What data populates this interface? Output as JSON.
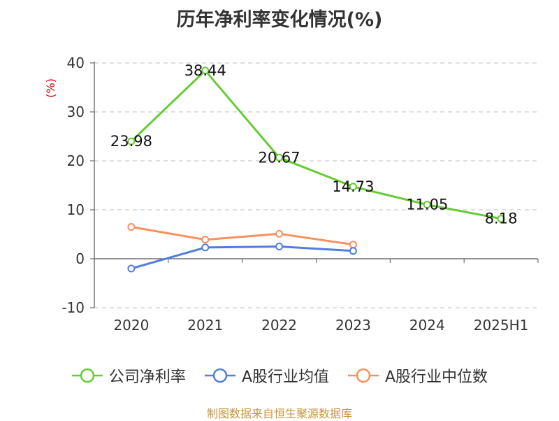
{
  "chart_data": {
    "type": "line",
    "title": "历年净利率变化情况(%)",
    "ylabel": "(%)",
    "categories": [
      "2020",
      "2021",
      "2022",
      "2023",
      "2024",
      "2025H1"
    ],
    "ylim": [
      -10,
      40
    ],
    "yticks": [
      40,
      30,
      20,
      10,
      0,
      -10
    ],
    "grid": true,
    "legend_position": "bottom",
    "series": [
      {
        "name": "公司净利率",
        "color": "#66cc33",
        "show_labels": true,
        "values": [
          23.98,
          38.44,
          20.67,
          14.73,
          11.05,
          8.18
        ],
        "labels": [
          "23.98",
          "38.44",
          "20.67",
          "14.73",
          "11.05",
          "8.18"
        ]
      },
      {
        "name": "A股行业均值",
        "color": "#4f7fdb",
        "show_labels": false,
        "values": [
          -2.0,
          2.3,
          2.5,
          1.6,
          null,
          null
        ]
      },
      {
        "name": "A股行业中位数",
        "color": "#f79060",
        "show_labels": false,
        "values": [
          6.5,
          3.9,
          5.1,
          2.9,
          null,
          null
        ]
      }
    ]
  },
  "footer": {
    "source": "制图数据来自恒生聚源数据库"
  }
}
